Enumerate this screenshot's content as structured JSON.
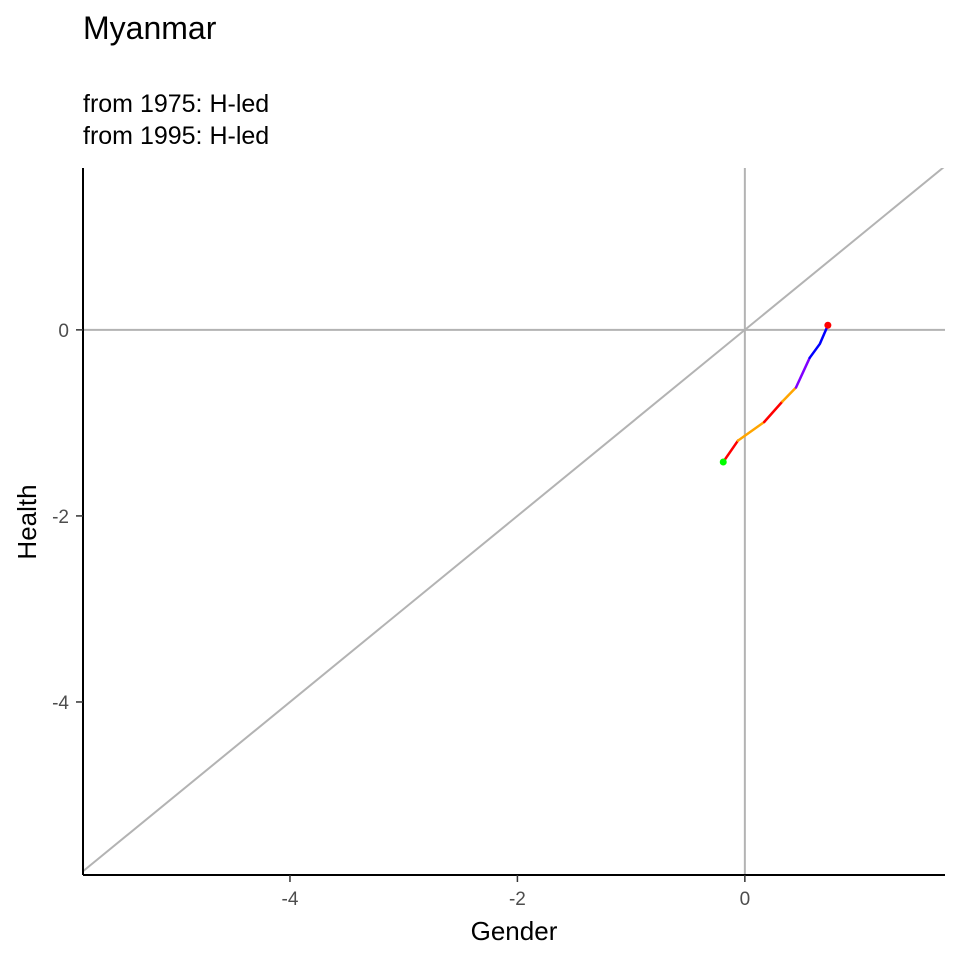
{
  "chart_data": {
    "type": "line",
    "title": "Myanmar",
    "subtitle_lines": [
      "from 1975:  H-led",
      "from 1995:  H-led"
    ],
    "xlabel": "Gender",
    "ylabel": "Health",
    "xlim": [
      -5.82,
      1.76
    ],
    "ylim": [
      -5.86,
      1.74
    ],
    "x_ticks": [
      -4,
      -2,
      0
    ],
    "y_ticks": [
      0,
      -2,
      -4
    ],
    "grid": false,
    "reference_lines": [
      {
        "kind": "vertical",
        "value": 0,
        "color": "#b3b3b3"
      },
      {
        "kind": "horizontal",
        "value": 0,
        "color": "#b3b3b3"
      },
      {
        "kind": "diagonal",
        "slope": 1,
        "intercept": 0,
        "color": "#b3b3b3"
      }
    ],
    "series": [
      {
        "color": "#ff0000",
        "points": [
          [
            -0.19,
            -1.42
          ],
          [
            -0.06,
            -1.19
          ]
        ]
      },
      {
        "color": "#ffa500",
        "points": [
          [
            -0.06,
            -1.19
          ],
          [
            0.17,
            -0.99
          ]
        ]
      },
      {
        "color": "#ff0000",
        "points": [
          [
            0.17,
            -0.99
          ],
          [
            0.33,
            -0.77
          ]
        ]
      },
      {
        "color": "#ffa500",
        "points": [
          [
            0.33,
            -0.77
          ],
          [
            0.45,
            -0.62
          ]
        ]
      },
      {
        "color": "#8000ff",
        "points": [
          [
            0.45,
            -0.62
          ],
          [
            0.57,
            -0.3
          ]
        ]
      },
      {
        "color": "#0000ff",
        "points": [
          [
            0.57,
            -0.3
          ],
          [
            0.66,
            -0.15
          ],
          [
            0.73,
            0.05
          ]
        ]
      }
    ],
    "markers": [
      {
        "x": -0.19,
        "y": -1.42,
        "color": "#00ff00"
      },
      {
        "x": 0.73,
        "y": 0.05,
        "color": "#ff0000"
      }
    ],
    "colors": {
      "axis": "#000000",
      "reference": "#b3b3b3"
    }
  }
}
